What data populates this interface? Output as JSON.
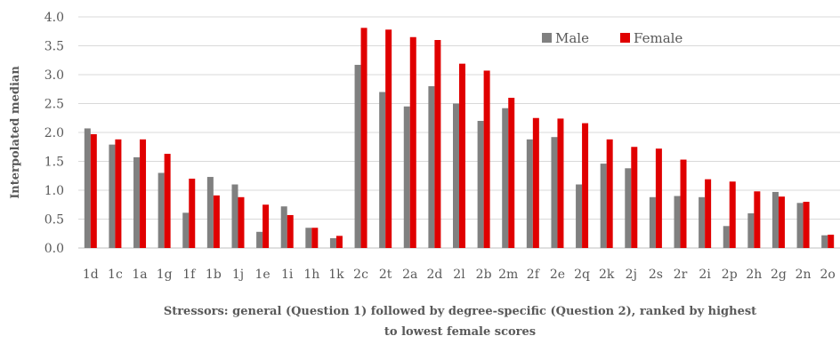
{
  "chart_data": {
    "type": "bar",
    "xlabel": "Stressors: general (Question 1) followed by degree-specific (Question 2), ranked by highest to lowest female scores",
    "xlabel_lines": [
      "Stressors: general (Question 1) followed by degree-specific (Question 2), ranked by highest",
      "to lowest female scores"
    ],
    "ylabel": "Interpolated median",
    "ylim": [
      0,
      4
    ],
    "yticks": [
      "0.0",
      "0.5",
      "1.0",
      "1.5",
      "2.0",
      "2.5",
      "3.0",
      "3.5",
      "4.0"
    ],
    "grid": true,
    "legend_position": "top-right",
    "categories": [
      "1d",
      "1c",
      "1a",
      "1g",
      "1f",
      "1b",
      "1j",
      "1e",
      "1i",
      "1h",
      "1k",
      "2c",
      "2t",
      "2a",
      "2d",
      "2l",
      "2b",
      "2m",
      "2f",
      "2e",
      "2q",
      "2k",
      "2j",
      "2s",
      "2r",
      "2i",
      "2p",
      "2h",
      "2g",
      "2n",
      "2o"
    ],
    "series": [
      {
        "name": "Male",
        "color": "#808080",
        "values": [
          2.07,
          1.79,
          1.57,
          1.3,
          0.61,
          1.23,
          1.1,
          0.28,
          0.72,
          0.35,
          0.17,
          3.17,
          2.7,
          2.45,
          2.8,
          2.5,
          2.2,
          2.42,
          1.88,
          1.92,
          1.1,
          1.46,
          1.38,
          0.88,
          0.9,
          0.88,
          0.38,
          0.6,
          0.97,
          0.78,
          0.22
        ]
      },
      {
        "name": "Female",
        "color": "#e00000",
        "values": [
          1.97,
          1.88,
          1.88,
          1.63,
          1.2,
          0.91,
          0.88,
          0.75,
          0.57,
          0.35,
          0.21,
          3.81,
          3.78,
          3.65,
          3.6,
          3.19,
          3.07,
          2.6,
          2.25,
          2.24,
          2.16,
          1.88,
          1.75,
          1.72,
          1.53,
          1.19,
          1.15,
          0.98,
          0.89,
          0.8,
          0.23
        ]
      }
    ]
  }
}
